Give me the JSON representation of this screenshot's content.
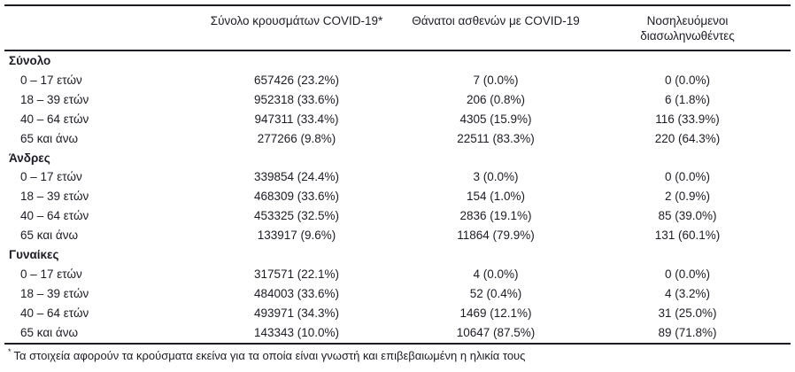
{
  "colors": {
    "text": "#1c1c24",
    "rule": "#1c1c24",
    "background": "#ffffff"
  },
  "header": {
    "col_label": "",
    "col_cases": "Σύνολο κρουσμάτων COVID-19*",
    "col_deaths": "Θάνατοι ασθενών με COVID-19",
    "col_intubated": "Νοσηλευόμενοι διασωληνωθέντες"
  },
  "sections": [
    {
      "label": "Σύνολο",
      "rows": [
        {
          "label": "0 – 17 ετών",
          "cases": "657426 (23.2%)",
          "deaths": "7 (0.0%)",
          "intubated": "0 (0.0%)"
        },
        {
          "label": "18 – 39 ετών",
          "cases": "952318 (33.6%)",
          "deaths": "206 (0.8%)",
          "intubated": "6 (1.8%)"
        },
        {
          "label": "40 – 64 ετών",
          "cases": "947311 (33.4%)",
          "deaths": "4305 (15.9%)",
          "intubated": "116 (33.9%)"
        },
        {
          "label": "65 και άνω",
          "cases": "277266 (9.8%)",
          "deaths": "22511 (83.3%)",
          "intubated": "220 (64.3%)"
        }
      ]
    },
    {
      "label": "Άνδρες",
      "rows": [
        {
          "label": "0 – 17 ετών",
          "cases": "339854 (24.4%)",
          "deaths": "3 (0.0%)",
          "intubated": "0 (0.0%)"
        },
        {
          "label": "18 – 39 ετών",
          "cases": "468309 (33.6%)",
          "deaths": "154 (1.0%)",
          "intubated": "2 (0.9%)"
        },
        {
          "label": "40 – 64 ετών",
          "cases": "453325 (32.5%)",
          "deaths": "2836 (19.1%)",
          "intubated": "85 (39.0%)"
        },
        {
          "label": "65 και άνω",
          "cases": "133917 (9.6%)",
          "deaths": "11864 (79.9%)",
          "intubated": "131 (60.1%)"
        }
      ]
    },
    {
      "label": "Γυναίκες",
      "rows": [
        {
          "label": "0 – 17 ετών",
          "cases": "317571 (22.1%)",
          "deaths": "4 (0.0%)",
          "intubated": "0 (0.0%)"
        },
        {
          "label": "18 – 39 ετών",
          "cases": "484003 (33.6%)",
          "deaths": "52 (0.4%)",
          "intubated": "4 (3.2%)"
        },
        {
          "label": "40 – 64 ετών",
          "cases": "493971 (34.3%)",
          "deaths": "1469 (12.1%)",
          "intubated": "31 (25.0%)"
        },
        {
          "label": "65 και άνω",
          "cases": "143343 (10.0%)",
          "deaths": "10647 (87.5%)",
          "intubated": "89 (71.8%)"
        }
      ]
    }
  ],
  "footnote": {
    "marker": "*",
    "text": "Τα στοιχεία αφορούν τα κρούσματα εκείνα για τα οποία είναι γνωστή και επιβεβαιωμένη η ηλικία τους"
  }
}
